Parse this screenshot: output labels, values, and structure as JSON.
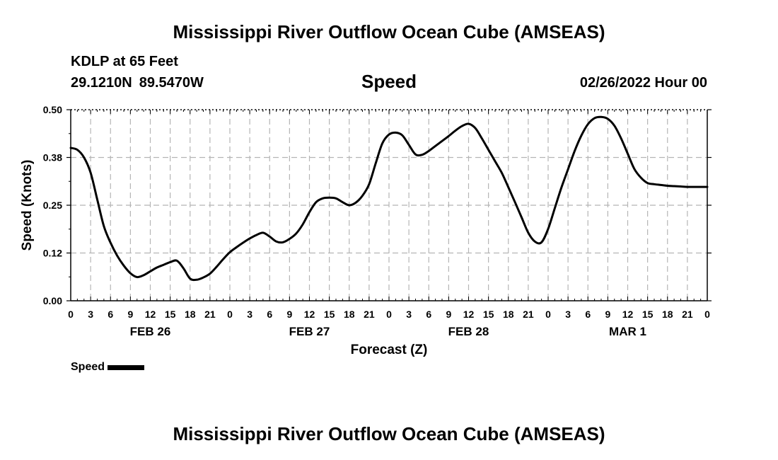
{
  "header": {
    "title": "Mississippi River Outflow Ocean Cube (AMSEAS)",
    "station": "KDLP at 65 Feet",
    "lat": "29.1210N",
    "lon": "89.5470W",
    "variable": "Speed",
    "datetime": "02/26/2022 Hour 00"
  },
  "footer": {
    "title": "Mississippi River Outflow Ocean Cube (AMSEAS)"
  },
  "legend": {
    "label": "Speed"
  },
  "chart_data": {
    "type": "line",
    "ylabel": "Speed (Knots)",
    "xlabel": "Forecast (Z)",
    "ylim": [
      0,
      0.5
    ],
    "yticks": [
      "0.00",
      "0.12",
      "0.25",
      "0.38",
      "0.50"
    ],
    "xlim": [
      0,
      96
    ],
    "xtick_labels": [
      "0",
      "3",
      "6",
      "9",
      "12",
      "15",
      "18",
      "21",
      "0",
      "3",
      "6",
      "9",
      "12",
      "15",
      "18",
      "21",
      "0",
      "3",
      "6",
      "9",
      "12",
      "15",
      "18",
      "21",
      "0",
      "3",
      "6",
      "9",
      "12",
      "15",
      "18",
      "21",
      "0"
    ],
    "day_labels": [
      {
        "label": "FEB 26",
        "hour": 12
      },
      {
        "label": "FEB 27",
        "hour": 36
      },
      {
        "label": "FEB 28",
        "hour": 60
      },
      {
        "label": "MAR 1",
        "hour": 84
      }
    ],
    "grid": true,
    "series": [
      {
        "name": "Speed",
        "color": "#000000",
        "x": [
          0,
          1,
          2,
          3,
          4,
          5,
          6,
          7,
          8,
          9,
          10,
          11,
          12,
          13,
          14,
          15,
          16,
          17,
          18,
          19,
          20,
          21,
          22,
          23,
          24,
          25,
          26,
          27,
          28,
          29,
          30,
          31,
          32,
          33,
          34,
          35,
          36,
          37,
          38,
          39,
          40,
          41,
          42,
          43,
          44,
          45,
          46,
          47,
          48,
          49,
          50,
          51,
          52,
          53,
          54,
          55,
          56,
          57,
          58,
          59,
          60,
          61,
          62,
          63,
          64,
          65,
          66,
          67,
          68,
          69,
          70,
          71,
          72,
          73,
          74,
          75,
          76,
          77,
          78,
          79,
          80,
          81,
          82,
          83,
          84,
          85,
          86,
          87,
          88,
          89,
          90,
          91,
          92,
          93,
          94,
          95,
          96
        ],
        "values": [
          0.4,
          0.395,
          0.375,
          0.335,
          0.265,
          0.195,
          0.152,
          0.118,
          0.092,
          0.072,
          0.062,
          0.067,
          0.077,
          0.087,
          0.094,
          0.101,
          0.105,
          0.085,
          0.058,
          0.055,
          0.061,
          0.071,
          0.089,
          0.109,
          0.127,
          0.14,
          0.152,
          0.163,
          0.172,
          0.178,
          0.168,
          0.155,
          0.153,
          0.162,
          0.176,
          0.2,
          0.232,
          0.258,
          0.268,
          0.27,
          0.268,
          0.258,
          0.25,
          0.257,
          0.275,
          0.305,
          0.36,
          0.412,
          0.435,
          0.44,
          0.433,
          0.408,
          0.383,
          0.382,
          0.392,
          0.405,
          0.418,
          0.431,
          0.445,
          0.457,
          0.463,
          0.452,
          0.425,
          0.395,
          0.365,
          0.335,
          0.297,
          0.258,
          0.218,
          0.178,
          0.155,
          0.153,
          0.188,
          0.242,
          0.296,
          0.344,
          0.392,
          0.432,
          0.462,
          0.478,
          0.481,
          0.476,
          0.458,
          0.425,
          0.385,
          0.345,
          0.322,
          0.308,
          0.305,
          0.303,
          0.301,
          0.3,
          0.299,
          0.298,
          0.298,
          0.298,
          0.298
        ]
      }
    ]
  }
}
